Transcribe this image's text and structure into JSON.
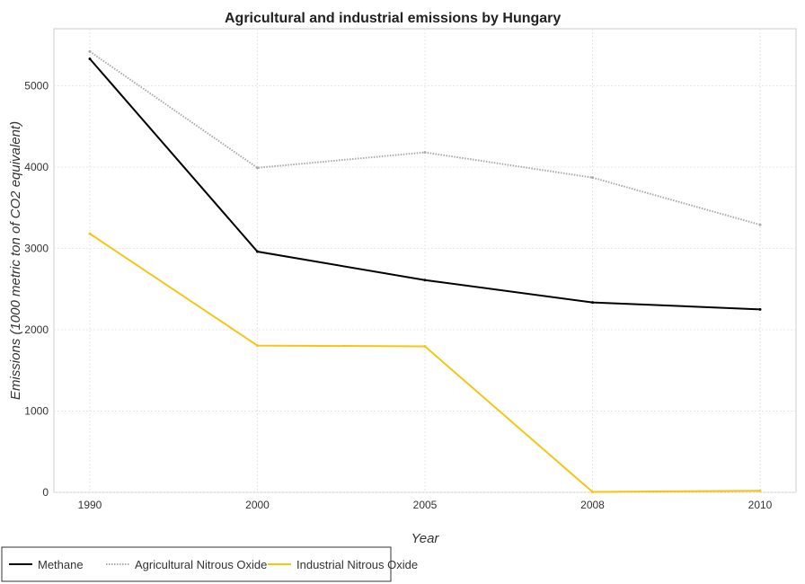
{
  "chart_data": {
    "type": "line",
    "title": "Agricultural and industrial emissions by Hungary",
    "xlabel": "Year",
    "ylabel": "Emissions (1000 metric ton of CO2 equivalent)",
    "categories": [
      "1990",
      "2000",
      "2005",
      "2008",
      "2010"
    ],
    "ylim": [
      0,
      5700
    ],
    "yticks": [
      0,
      1000,
      2000,
      3000,
      4000,
      5000
    ],
    "grid": true,
    "legend_position": "bottom-left",
    "series": [
      {
        "name": "Methane",
        "color": "#000000",
        "dash": "",
        "values": [
          5330,
          2960,
          2610,
          2335,
          2250
        ]
      },
      {
        "name": "Agricultural Nitrous Oxide",
        "color": "#aaaaaa",
        "dash": "1.5,1.5",
        "values": [
          5420,
          3990,
          4180,
          3870,
          3290
        ]
      },
      {
        "name": "Industrial Nitrous Oxide",
        "color": "#f5c518",
        "dash": "",
        "values": [
          3180,
          1805,
          1795,
          5,
          20
        ]
      }
    ]
  }
}
